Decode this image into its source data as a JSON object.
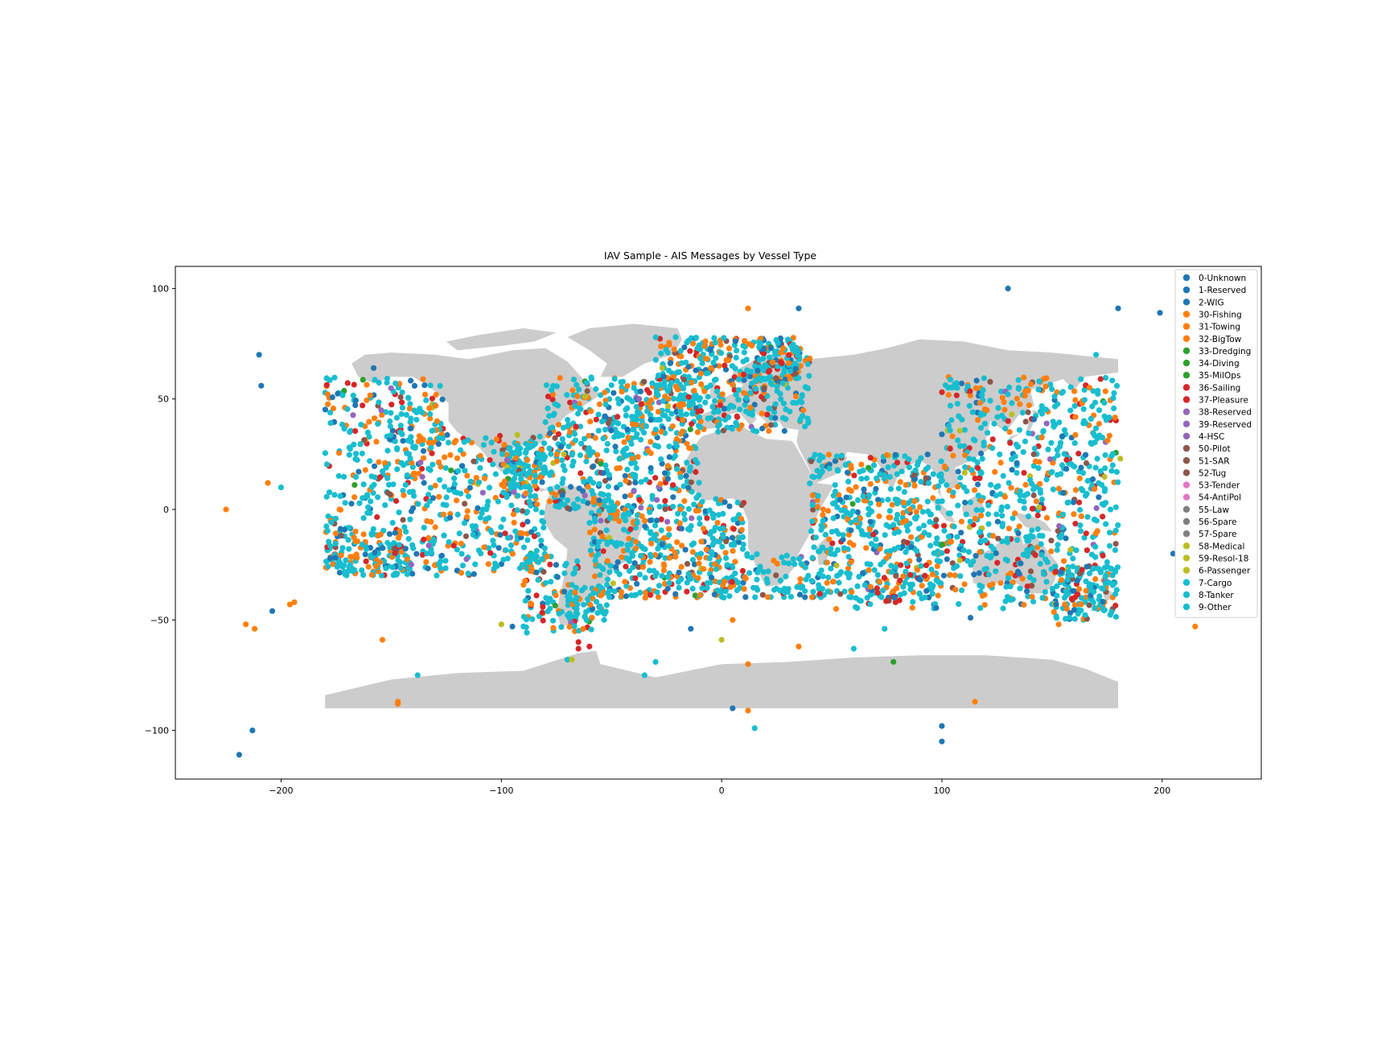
{
  "chart_data": {
    "type": "scatter",
    "title": "IAV Sample - AIS Messages by Vessel Type",
    "xlabel": "",
    "ylabel": "",
    "xlim": [
      -248,
      245
    ],
    "ylim": [
      -122,
      110
    ],
    "xticks": [
      -200,
      -100,
      0,
      100,
      200
    ],
    "yticks": [
      100,
      50,
      0,
      -50,
      -100
    ],
    "xtick_labels": [
      "−200",
      "−100",
      "0",
      "100",
      "200"
    ],
    "ytick_labels": [
      "100",
      "50",
      "0",
      "−50",
      "−100"
    ],
    "grid": false,
    "legend_position": "top-right",
    "basemap": "world land polygons (light gray) from -180 to 180 longitude, -90 to 72 latitude",
    "colors": {
      "land": "#cccccc",
      "blue": "#1f77b4",
      "orange": "#ff7f0e",
      "green": "#2ca02c",
      "red": "#d62728",
      "purple": "#9467bd",
      "brown": "#8c564b",
      "pink": "#e377c2",
      "gray": "#7f7f7f",
      "olive": "#bcbd22",
      "cyan": "#17becf"
    },
    "series": [
      {
        "name": "0-Unknown",
        "color": "#1f77b4",
        "x": [
          -210,
          -209,
          -158,
          130,
          35,
          180,
          199,
          205,
          100,
          109,
          117,
          113,
          -219,
          -213,
          -204,
          5,
          100,
          100,
          -95,
          -14
        ],
        "y": [
          70,
          56,
          64,
          100,
          91,
          91,
          89,
          -20,
          34,
          57,
          53,
          -49,
          -111,
          -100,
          -46,
          -90,
          -98,
          -105,
          -53,
          -54
        ]
      },
      {
        "name": "7-Cargo",
        "color": "#17becf",
        "x": [
          -200,
          -138,
          -90,
          15,
          -70,
          60,
          -30,
          -35,
          74,
          170,
          30,
          110
        ],
        "y": [
          10,
          -75,
          -53,
          -99,
          -68,
          -63,
          -69,
          -75,
          -54,
          70,
          55,
          10
        ]
      },
      {
        "name": "30-Fishing",
        "color": "#ff7f0e",
        "x": [
          -225,
          -206,
          -216,
          -212,
          -194,
          -196,
          -154,
          -147,
          -147,
          12,
          12,
          12,
          115,
          35,
          103,
          78,
          52,
          215,
          153,
          173,
          5
        ],
        "y": [
          0,
          12,
          -52,
          -54,
          -42,
          -43,
          -59,
          -87,
          -88,
          91,
          -70,
          -91,
          -87,
          -62,
          60,
          -37,
          -45,
          -53,
          -52,
          -44,
          -50
        ]
      },
      {
        "name": "36-Sailing",
        "color": "#d62728",
        "x": [
          -65,
          -65,
          -60,
          79
        ],
        "y": [
          -60,
          -63,
          -62,
          -42
        ]
      },
      {
        "name": "58-Medical",
        "color": "#bcbd22",
        "x": [
          -100,
          0,
          181,
          -68
        ],
        "y": [
          -52,
          -59,
          23,
          -68
        ]
      },
      {
        "name": "33-Dredging",
        "color": "#2ca02c",
        "x": [
          78,
          -62
        ],
        "y": [
          -69,
          58
        ]
      }
    ],
    "legend": [
      {
        "label": "0-Unknown",
        "color": "#1f77b4"
      },
      {
        "label": "1-Reserved",
        "color": "#1f77b4"
      },
      {
        "label": "2-WIG",
        "color": "#1f77b4"
      },
      {
        "label": "30-Fishing",
        "color": "#ff7f0e"
      },
      {
        "label": "31-Towing",
        "color": "#ff7f0e"
      },
      {
        "label": "32-BigTow",
        "color": "#ff7f0e"
      },
      {
        "label": "33-Dredging",
        "color": "#2ca02c"
      },
      {
        "label": "34-Diving",
        "color": "#2ca02c"
      },
      {
        "label": "35-MilOps",
        "color": "#2ca02c"
      },
      {
        "label": "36-Sailing",
        "color": "#d62728"
      },
      {
        "label": "37-Pleasure",
        "color": "#d62728"
      },
      {
        "label": "38-Reserved",
        "color": "#9467bd"
      },
      {
        "label": "39-Reserved",
        "color": "#9467bd"
      },
      {
        "label": "4-HSC",
        "color": "#9467bd"
      },
      {
        "label": "50-Pilot",
        "color": "#8c564b"
      },
      {
        "label": "51-SAR",
        "color": "#8c564b"
      },
      {
        "label": "52-Tug",
        "color": "#8c564b"
      },
      {
        "label": "53-Tender",
        "color": "#e377c2"
      },
      {
        "label": "54-AntiPol",
        "color": "#e377c2"
      },
      {
        "label": "55-Law",
        "color": "#7f7f7f"
      },
      {
        "label": "56-Spare",
        "color": "#7f7f7f"
      },
      {
        "label": "57-Spare",
        "color": "#7f7f7f"
      },
      {
        "label": "58-Medical",
        "color": "#bcbd22"
      },
      {
        "label": "59-Resol-18",
        "color": "#bcbd22"
      },
      {
        "label": "6-Passenger",
        "color": "#bcbd22"
      },
      {
        "label": "7-Cargo",
        "color": "#17becf"
      },
      {
        "label": "8-Tanker",
        "color": "#17becf"
      },
      {
        "label": "9-Other",
        "color": "#17becf"
      }
    ]
  }
}
